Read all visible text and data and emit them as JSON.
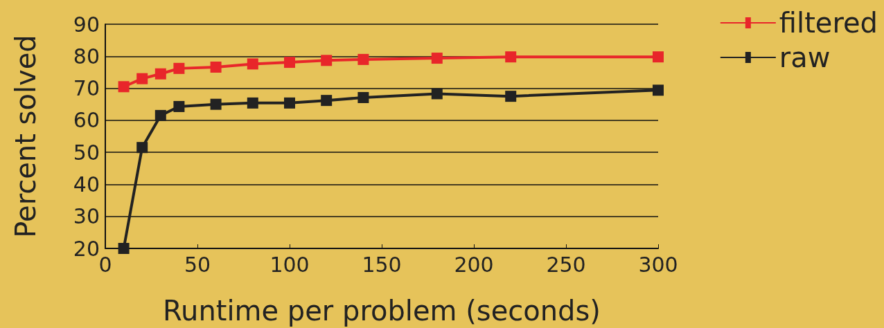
{
  "chart_data": {
    "type": "line",
    "xlabel": "Runtime per problem (seconds)",
    "ylabel": "Percent solved",
    "x": [
      10,
      20,
      30,
      40,
      60,
      80,
      100,
      120,
      140,
      180,
      220,
      300
    ],
    "series": [
      {
        "name": "filtered",
        "color": "#e8262a",
        "values": [
          70.5,
          73,
          74.5,
          76.2,
          76.6,
          77.6,
          78.1,
          78.7,
          79,
          79.4,
          79.8,
          79.8
        ]
      },
      {
        "name": "raw",
        "color": "#222222",
        "values": [
          20,
          51.5,
          61.5,
          64.3,
          65,
          65.4,
          65.4,
          66.2,
          67.1,
          68.3,
          67.5,
          69.4
        ]
      }
    ],
    "xlim": [
      0,
      300
    ],
    "xticks": [
      0,
      50,
      100,
      150,
      200,
      250,
      300
    ],
    "ylim": [
      20,
      90
    ],
    "yticks": [
      20,
      30,
      40,
      50,
      60,
      70,
      80,
      90
    ],
    "grid": "y",
    "legend": "top right",
    "marker": "square",
    "line_style": "solid"
  }
}
